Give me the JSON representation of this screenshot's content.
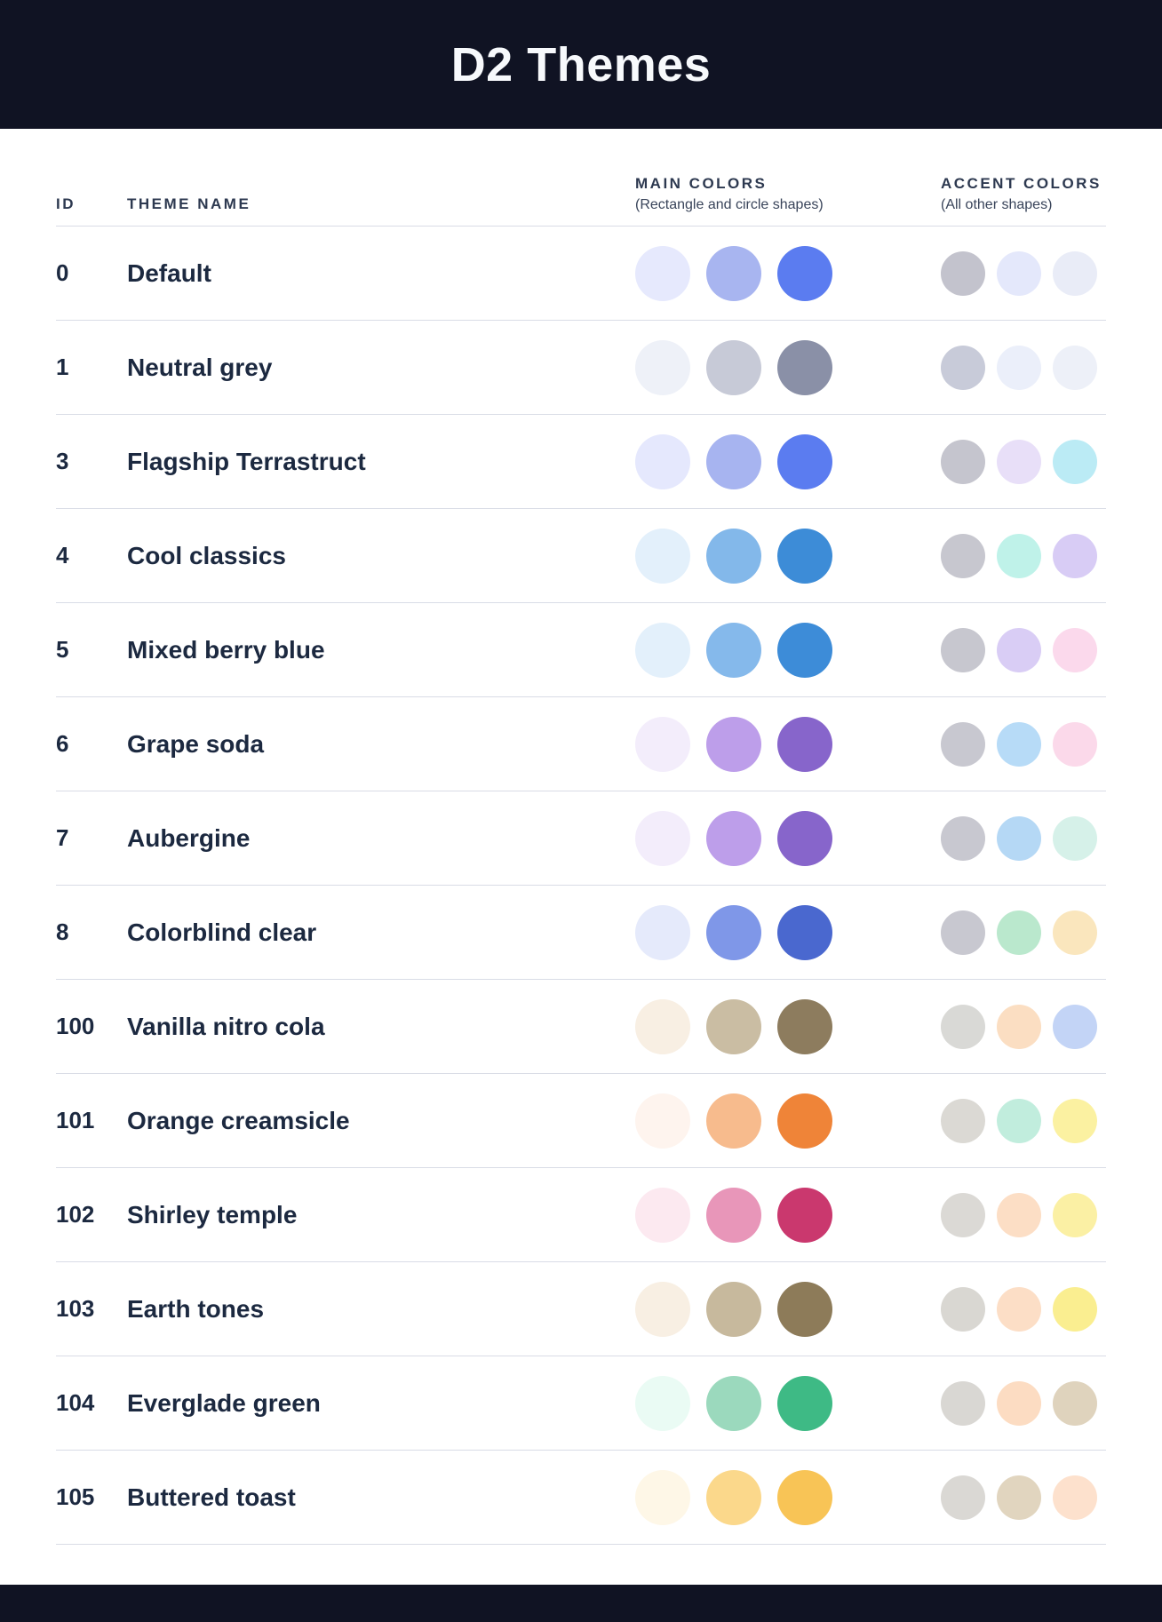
{
  "header": {
    "title": "D2 Themes"
  },
  "columns": {
    "id": "ID",
    "theme_name": "THEME NAME",
    "main_colors": "MAIN COLORS",
    "main_colors_sub": "(Rectangle and circle shapes)",
    "accent_colors": "ACCENT COLORS",
    "accent_colors_sub": "(All other shapes)"
  },
  "palette": {
    "header_bg": "#101323",
    "title_text": "#f7f9fc",
    "heading_text": "#2d3950",
    "body_text": "#1c2940",
    "divider": "#d9dce6"
  },
  "themes": [
    {
      "id": "0",
      "name": "Default",
      "main": [
        "#e6e9fd",
        "#a8b5f0",
        "#5b7cf0"
      ],
      "accent": [
        "#c3c3cd",
        "#e4e8fb",
        "#e9ecf7"
      ]
    },
    {
      "id": "1",
      "name": "Neutral grey",
      "main": [
        "#eef1f8",
        "#c7cad7",
        "#8a90a7"
      ],
      "accent": [
        "#c8cbd9",
        "#ebeffa",
        "#edf0f8"
      ]
    },
    {
      "id": "3",
      "name": "Flagship Terrastruct",
      "main": [
        "#e5e8fd",
        "#a7b4f0",
        "#5b7cf0"
      ],
      "accent": [
        "#c5c5ce",
        "#e8dff8",
        "#bbebf5"
      ]
    },
    {
      "id": "4",
      "name": "Cool classics",
      "main": [
        "#e3f0fb",
        "#83b8ea",
        "#3d8cd7"
      ],
      "accent": [
        "#c7c7cf",
        "#bff2e9",
        "#d8ccf5"
      ]
    },
    {
      "id": "5",
      "name": "Mixed berry blue",
      "main": [
        "#e3f0fb",
        "#85b9eb",
        "#3d8cd8"
      ],
      "accent": [
        "#c7c7cf",
        "#d9cdf5",
        "#fbd9ec"
      ]
    },
    {
      "id": "6",
      "name": "Grape soda",
      "main": [
        "#f3edfb",
        "#bd9eea",
        "#8765cb"
      ],
      "accent": [
        "#c8c8d0",
        "#b7dbf7",
        "#fbd9ea"
      ]
    },
    {
      "id": "7",
      "name": "Aubergine",
      "main": [
        "#f3edfb",
        "#bd9eea",
        "#8765cb"
      ],
      "accent": [
        "#c8c8d0",
        "#b5d8f5",
        "#d6f1e9"
      ]
    },
    {
      "id": "8",
      "name": "Colorblind clear",
      "main": [
        "#e5eafb",
        "#7f97e8",
        "#4a68cf"
      ],
      "accent": [
        "#c8c8d0",
        "#bae8cd",
        "#fae6bd"
      ]
    },
    {
      "id": "100",
      "name": "Vanilla nitro cola",
      "main": [
        "#f8efe3",
        "#cabda3",
        "#8d7c5e"
      ],
      "accent": [
        "#d9d9d6",
        "#fbdec2",
        "#c3d4f6"
      ]
    },
    {
      "id": "101",
      "name": "Orange creamsicle",
      "main": [
        "#fef4ee",
        "#f7bb8d",
        "#ef8438"
      ],
      "accent": [
        "#dbd9d4",
        "#c1eddd",
        "#fbf1a1"
      ]
    },
    {
      "id": "102",
      "name": "Shirley temple",
      "main": [
        "#fce9f0",
        "#e896b9",
        "#ca386e"
      ],
      "accent": [
        "#dbd9d5",
        "#fcdec5",
        "#fbf0a4"
      ]
    },
    {
      "id": "103",
      "name": "Earth tones",
      "main": [
        "#f8efe3",
        "#c7b99d",
        "#8d7b59"
      ],
      "accent": [
        "#d9d7d2",
        "#fcdec6",
        "#faee90"
      ]
    },
    {
      "id": "104",
      "name": "Everglade green",
      "main": [
        "#eafbf4",
        "#9bd9bd",
        "#3eba85"
      ],
      "accent": [
        "#d9d7d3",
        "#fcdcc2",
        "#dfd3bd"
      ]
    },
    {
      "id": "105",
      "name": "Buttered toast",
      "main": [
        "#fef7e7",
        "#fbd88b",
        "#f8c456"
      ],
      "accent": [
        "#dad8d4",
        "#e1d5bf",
        "#fde1cd"
      ]
    }
  ]
}
